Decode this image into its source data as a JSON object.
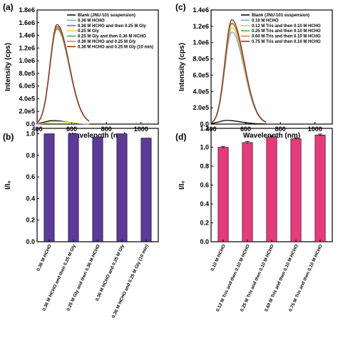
{
  "colors": {
    "axis": "#000000",
    "bar_purple": "#5b3a9a",
    "bar_pink": "#e83a7a",
    "error_bar": "#000000"
  },
  "chart_data": [
    {
      "id": "a",
      "panel": "(a)",
      "type": "line",
      "xlabel": "Wavelength (nm)",
      "ylabel": "Intensity (cps)",
      "xlim": [
        400,
        1100
      ],
      "ylim": [
        0,
        1800000
      ],
      "xticks": [
        400,
        600,
        800,
        1000
      ],
      "xtick_labels": [
        "400",
        "600",
        "800",
        "1000"
      ],
      "yticks": [
        0,
        200000,
        400000,
        600000,
        800000,
        1000000,
        1200000,
        1400000,
        1600000,
        1800000
      ],
      "ytick_labels": [
        "0.0",
        "2.0e5",
        "4.0e5",
        "6.0e5",
        "8.0e5",
        "1.0e6",
        "1.2e6",
        "1.4e6",
        "1.6e6",
        "1.8e6"
      ],
      "legend_position": "top-right",
      "series": [
        {
          "name": "Blank (JNU-101 suspension)",
          "color": "#000000",
          "peak_x": 490,
          "peak_y": 55000,
          "width_left": 45,
          "width_right": 80,
          "x_start": 400,
          "x_end": 700
        },
        {
          "name": "0.36 M  HCHO",
          "color": "#6aa8e0",
          "peak_x": 515,
          "peak_y": 1520000,
          "width_left": 40,
          "width_right": 70,
          "x_start": 400,
          "x_end": 700
        },
        {
          "name": "0.36 M  HCHO and then 0.25 M Gly",
          "color": "#e23b2e",
          "peak_x": 515,
          "peak_y": 1540000,
          "width_left": 40,
          "width_right": 70,
          "x_start": 400,
          "x_end": 700
        },
        {
          "name": "0.25 M Gly",
          "color": "#d6d62a",
          "peak_x": 510,
          "peak_y": 40000,
          "width_left": 45,
          "width_right": 80,
          "x_start": 400,
          "x_end": 700
        },
        {
          "name": "0.25 M Gly and then 0.36 M  HCHO",
          "color": "#3fa64a",
          "peak_x": 515,
          "peak_y": 1500000,
          "width_left": 40,
          "width_right": 70,
          "x_start": 400,
          "x_end": 700
        },
        {
          "name": "0.36 M  HCHO and 0.25 M Gly",
          "color": "#e07a2e",
          "peak_x": 515,
          "peak_y": 1530000,
          "width_left": 40,
          "width_right": 70,
          "x_start": 400,
          "x_end": 700
        },
        {
          "name": "0.36 M  HCHO and 0.25 M Gly (10 min)",
          "color": "#8b2a22",
          "peak_x": 515,
          "peak_y": 1570000,
          "width_left": 40,
          "width_right": 70,
          "x_start": 400,
          "x_end": 700
        }
      ]
    },
    {
      "id": "b",
      "panel": "(b)",
      "type": "bar",
      "ylabel": "I/I₀",
      "ylim": [
        0,
        1.05
      ],
      "yticks": [
        0,
        0.2,
        0.4,
        0.6,
        0.8,
        1.0
      ],
      "ytick_labels": [
        "0.0",
        "0.2",
        "0.4",
        "0.6",
        "0.8",
        "1.0"
      ],
      "categories": [
        "0.36 M HCHO",
        "0.36 M HCHO and then 0.25 M Gly",
        "0.25 M Gly and then  0.36 M HCHO",
        "0.36 M HCHO and 0.25 M Gly",
        "0.36 M HCHO and 0.25 M Gly (10 min)"
      ],
      "values": [
        1.0,
        1.0,
        0.97,
        1.0,
        0.96
      ],
      "bar_color": "#5b3a9a"
    },
    {
      "id": "c",
      "panel": "(c)",
      "type": "line",
      "xlabel": "Wavelength (nm)",
      "ylabel": "Intensity (cps)",
      "xlim": [
        400,
        1100
      ],
      "ylim": [
        0,
        1400000
      ],
      "xticks": [
        400,
        600,
        800,
        1000
      ],
      "xtick_labels": [
        "400",
        "600",
        "800",
        "1000"
      ],
      "yticks": [
        0,
        200000,
        400000,
        600000,
        800000,
        1000000,
        1200000,
        1400000
      ],
      "ytick_labels": [
        "0.0",
        "2.0e5",
        "4.0e5",
        "6.0e5",
        "8.0e5",
        "1.0e6",
        "1.2e6",
        "1.4e6"
      ],
      "legend_position": "top-right",
      "series": [
        {
          "name": "Blank (JNU-101 suspension)",
          "color": "#000000",
          "peak_x": 490,
          "peak_y": 45000,
          "width_left": 45,
          "width_right": 80,
          "x_start": 400,
          "x_end": 720
        },
        {
          "name": "0.10 M  HCHO",
          "color": "#6aa8e0",
          "peak_x": 520,
          "peak_y": 1130000,
          "width_left": 40,
          "width_right": 70,
          "x_start": 400,
          "x_end": 720
        },
        {
          "name": "0.12 M  Tris and then 0.10 M HCHO",
          "color": "#c8d23a",
          "peak_x": 520,
          "peak_y": 1180000,
          "width_left": 40,
          "width_right": 70,
          "x_start": 400,
          "x_end": 720
        },
        {
          "name": "0.25 M  Tris and then 0.10 M HCHO",
          "color": "#3fa64a",
          "peak_x": 520,
          "peak_y": 1240000,
          "width_left": 40,
          "width_right": 70,
          "x_start": 400,
          "x_end": 720
        },
        {
          "name": "0.60 M  Tris and then 0.10 M HCHO",
          "color": "#e07a2e",
          "peak_x": 520,
          "peak_y": 1230000,
          "width_left": 40,
          "width_right": 70,
          "x_start": 400,
          "x_end": 720
        },
        {
          "name": "0.75 M  Tris and then 0.10 M HCHO",
          "color": "#8b2a22",
          "peak_x": 520,
          "peak_y": 1280000,
          "width_left": 40,
          "width_right": 70,
          "x_start": 400,
          "x_end": 720
        }
      ]
    },
    {
      "id": "d",
      "panel": "(d)",
      "type": "bar",
      "ylabel": "I/I₀",
      "ylim": [
        0,
        1.2
      ],
      "yticks": [
        0,
        0.2,
        0.4,
        0.6,
        0.8,
        1.0,
        1.2
      ],
      "ytick_labels": [
        "0.0",
        "0.2",
        "0.4",
        "0.6",
        "0.8",
        "1.0",
        "1.2"
      ],
      "categories": [
        "0.10 M HCHO",
        "0.12 M Tris and then 0.10 M HCHO",
        "0.25 M Tris and then 0.10 M HCHO",
        "0.60 M Tris and then 0.10 M HCHO",
        "0.75 M Tris and then 0.10 M HCHO"
      ],
      "values": [
        1.0,
        1.05,
        1.11,
        1.09,
        1.13
      ],
      "errors": [
        0.01,
        0.01,
        0.01,
        0.01,
        0.01
      ],
      "bar_color": "#e83a7a"
    }
  ]
}
